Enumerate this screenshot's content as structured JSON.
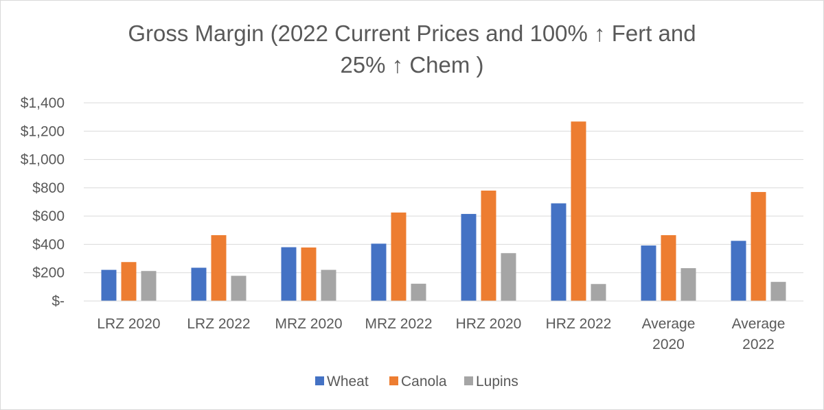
{
  "chart_data": {
    "type": "bar",
    "title_lines": [
      "Gross Margin (2022 Current Prices and 100% ↑ Fert and",
      "25% ↑ Chem )"
    ],
    "categories": [
      [
        "LRZ 2020"
      ],
      [
        "LRZ 2022"
      ],
      [
        "MRZ 2020"
      ],
      [
        "MRZ 2022"
      ],
      [
        "HRZ 2020"
      ],
      [
        "HRZ 2022"
      ],
      [
        "Average",
        "2020"
      ],
      [
        "Average",
        "2022"
      ]
    ],
    "series": [
      {
        "name": "Wheat",
        "color": "#4472c4",
        "values": [
          220,
          235,
          380,
          405,
          615,
          690,
          392,
          425
        ]
      },
      {
        "name": "Canola",
        "color": "#ed7d31",
        "values": [
          275,
          465,
          378,
          625,
          780,
          1268,
          465,
          770
        ]
      },
      {
        "name": "Lupins",
        "color": "#a5a5a5",
        "values": [
          212,
          178,
          220,
          122,
          338,
          120,
          232,
          135
        ]
      }
    ],
    "y_ticks": [
      "$-",
      "$200",
      "$400",
      "$600",
      "$800",
      "$1,000",
      "$1,200",
      "$1,400"
    ],
    "ylim": [
      0,
      1400
    ],
    "grid": true,
    "legend_position": "bottom"
  }
}
